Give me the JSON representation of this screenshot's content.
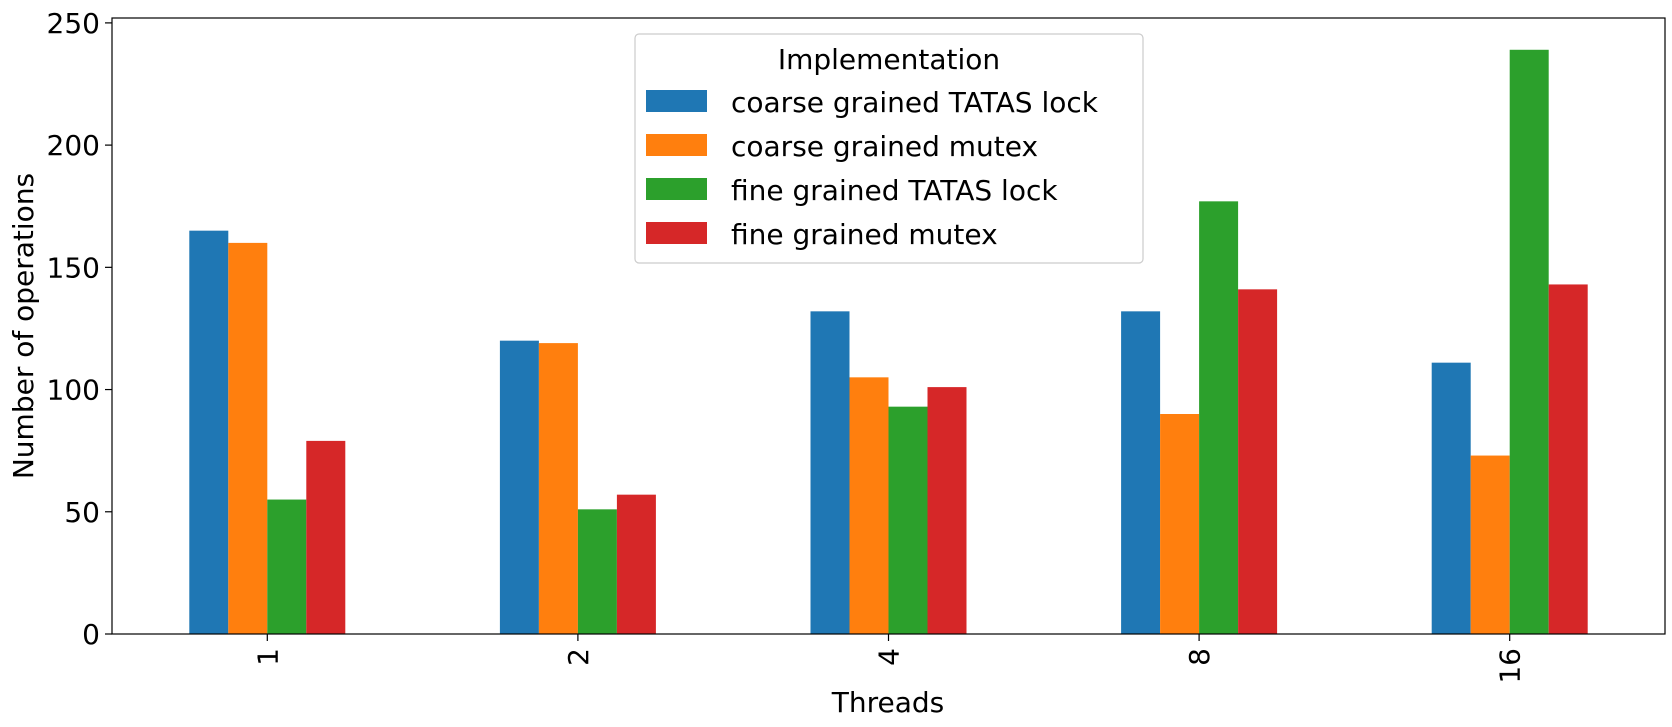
{
  "chart_data": {
    "type": "bar",
    "title": "",
    "xlabel": "Threads",
    "ylabel": "Number of operations",
    "categories": [
      "1",
      "2",
      "4",
      "8",
      "16"
    ],
    "ylim": [
      0,
      252
    ],
    "yticks": [
      0,
      50,
      100,
      150,
      200,
      250
    ],
    "grid": false,
    "legend": {
      "title": "Implementation",
      "placement": "top-center"
    },
    "series": [
      {
        "name": "coarse grained TATAS lock",
        "color": "#1f77b4",
        "values": [
          165,
          120,
          132,
          132,
          111
        ]
      },
      {
        "name": "coarse grained mutex",
        "color": "#ff7f0e",
        "values": [
          160,
          119,
          105,
          90,
          73
        ]
      },
      {
        "name": "fine grained TATAS lock",
        "color": "#2ca02c",
        "values": [
          55,
          51,
          93,
          177,
          239
        ]
      },
      {
        "name": "fine grained mutex",
        "color": "#d62728",
        "values": [
          79,
          57,
          101,
          141,
          143
        ]
      }
    ]
  }
}
